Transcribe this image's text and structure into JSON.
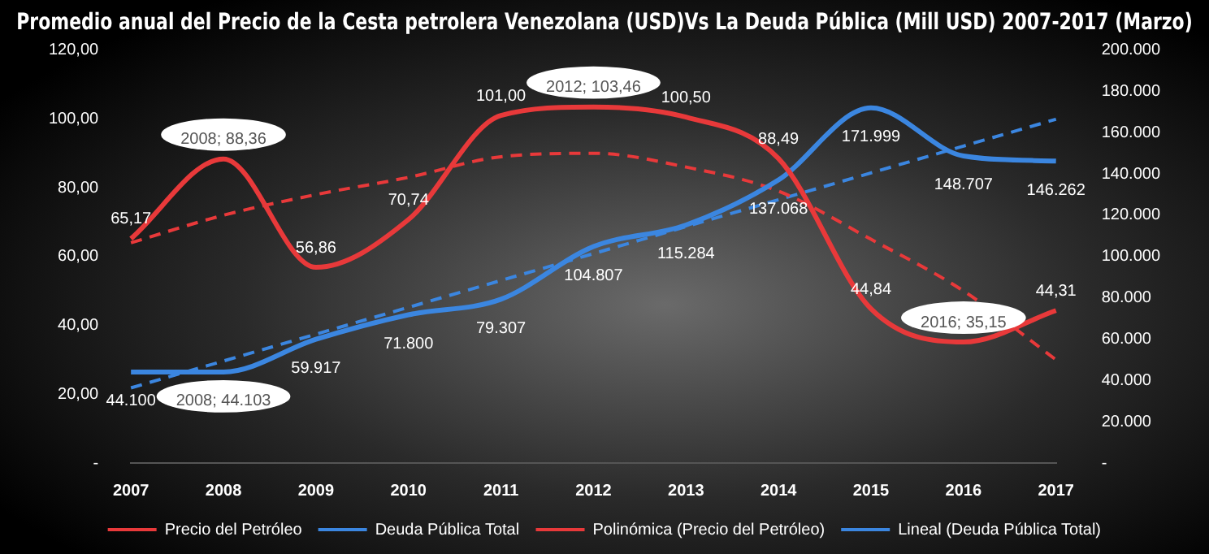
{
  "chart_data": {
    "type": "line",
    "title": "Promedio anual del Precio de la Cesta petrolera Venezolana (USD)Vs La Deuda Pública (Mill USD) 2007-2017 (Marzo)",
    "categories": [
      "2007",
      "2008",
      "2009",
      "2010",
      "2011",
      "2012",
      "2013",
      "2014",
      "2015",
      "2016",
      "2017"
    ],
    "series": [
      {
        "name": "Precio del Petróleo",
        "color": "#e8393a",
        "values": [
          65.17,
          88.36,
          56.86,
          70.74,
          101.0,
          103.46,
          100.5,
          88.49,
          44.84,
          35.15,
          44.31
        ],
        "value_labels": [
          "65,17",
          "2008; 88,36",
          "56,86",
          "70,74",
          "101,00",
          "2012; 103,46",
          "100,50",
          "88,49",
          "44,84",
          "2016; 35,15",
          "44,31"
        ]
      },
      {
        "name": "Deuda Pública Total",
        "color": "#3b86e0",
        "axis": "y2",
        "values": [
          44100,
          44103,
          59917,
          71800,
          79307,
          104807,
          115284,
          137068,
          171999,
          148707,
          146262
        ],
        "value_labels": [
          "44.100",
          "2008; 44.103",
          "59.917",
          "71.800",
          "79.307",
          "104.807",
          "115.284",
          "137.068",
          "171.999",
          "148.707",
          "146.262"
        ]
      },
      {
        "name": "Polinómica (Precio del Petróleo)",
        "color": "#e8393a",
        "line_style": "dashed",
        "values": [
          64,
          72,
          78,
          83,
          89,
          90,
          86,
          79,
          65,
          50,
          30
        ]
      },
      {
        "name": "Lineal (Deuda Pública Total)",
        "color": "#3b86e0",
        "line_style": "dashed",
        "axis": "y2",
        "values": [
          36400,
          49400,
          62400,
          75400,
          88400,
          101400,
          114500,
          127500,
          140500,
          153500,
          166500
        ]
      }
    ],
    "ylim": [
      0,
      120
    ],
    "yticks": [
      {
        "value": 0,
        "label": "-"
      },
      {
        "value": 20,
        "label": "20,00"
      },
      {
        "value": 40,
        "label": "40,00"
      },
      {
        "value": 60,
        "label": "60,00"
      },
      {
        "value": 80,
        "label": "80,00"
      },
      {
        "value": 100,
        "label": "100,00"
      },
      {
        "value": 120,
        "label": "120,00"
      }
    ],
    "y2lim": [
      0,
      200000
    ],
    "y2ticks": [
      {
        "value": 0,
        "label": "-"
      },
      {
        "value": 20000,
        "label": "20.000"
      },
      {
        "value": 40000,
        "label": "40.000"
      },
      {
        "value": 60000,
        "label": "60.000"
      },
      {
        "value": 80000,
        "label": "80.000"
      },
      {
        "value": 100000,
        "label": "100.000"
      },
      {
        "value": 120000,
        "label": "120.000"
      },
      {
        "value": 140000,
        "label": "140.000"
      },
      {
        "value": 160000,
        "label": "160.000"
      },
      {
        "value": 180000,
        "label": "180.000"
      },
      {
        "value": 200000,
        "label": "200.000"
      }
    ],
    "grid": false,
    "legend": "bottom",
    "marker": "none",
    "line_style": "solid"
  }
}
